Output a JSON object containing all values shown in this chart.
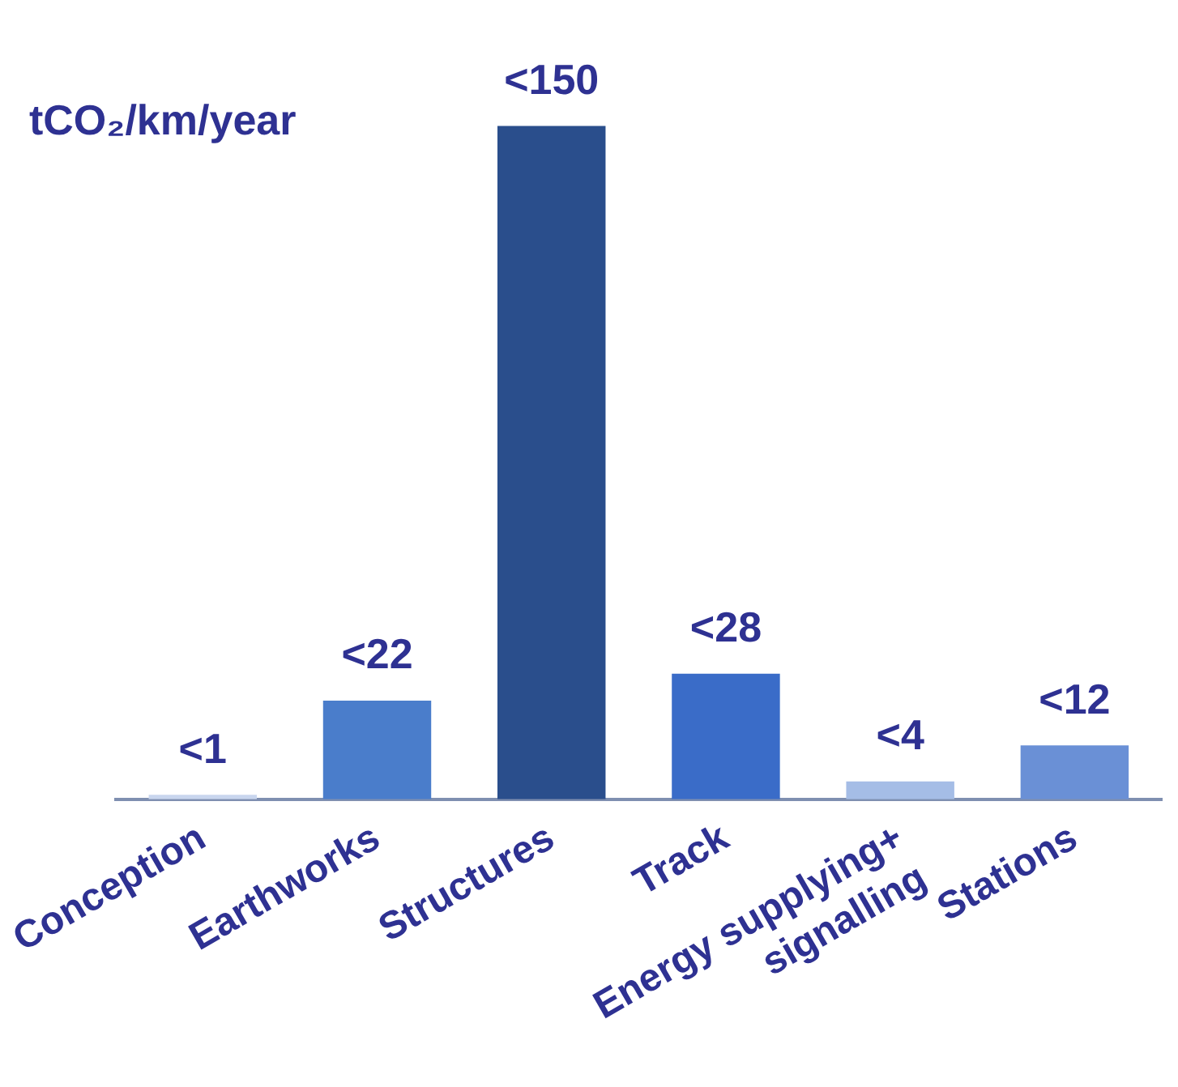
{
  "chart_data": {
    "type": "bar",
    "tick_labels": "x",
    "ylabel": "tCO₂/km/year",
    "categories": [
      "Conception",
      "Earthworks",
      "Structures",
      "Track",
      "Energy supplying+\nsignalling",
      "Stations"
    ],
    "values": [
      1,
      22,
      150,
      28,
      4,
      12
    ],
    "colors": [
      "#c9d6ee",
      "#4a7dcb",
      "#2a4e8c",
      "#3a6cc8",
      "#a5bde6",
      "#6a90d6"
    ],
    "value_labels": [
      "<1",
      "<22",
      "<150",
      "<28",
      "<4",
      "<12"
    ],
    "grid": false,
    "legend": false
  }
}
